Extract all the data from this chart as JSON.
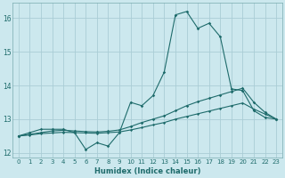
{
  "xlabel": "Humidex (Indice chaleur)",
  "background_color": "#cce8ee",
  "grid_color": "#aacdd6",
  "line_color": "#1e6b6b",
  "x_values": [
    0,
    1,
    2,
    3,
    4,
    5,
    6,
    7,
    8,
    9,
    10,
    11,
    12,
    13,
    14,
    15,
    16,
    17,
    18,
    19,
    20,
    21,
    22,
    23
  ],
  "line1_y": [
    12.5,
    12.6,
    12.7,
    12.7,
    12.7,
    12.6,
    12.1,
    12.3,
    12.2,
    12.6,
    13.5,
    13.4,
    13.7,
    14.4,
    16.1,
    16.2,
    15.7,
    15.85,
    15.45,
    13.9,
    13.85,
    13.25,
    13.05,
    13.0
  ],
  "line2_y": [
    12.5,
    12.55,
    12.6,
    12.65,
    12.67,
    12.65,
    12.63,
    12.62,
    12.64,
    12.68,
    12.78,
    12.9,
    13.0,
    13.1,
    13.25,
    13.4,
    13.52,
    13.62,
    13.72,
    13.82,
    13.92,
    13.5,
    13.2,
    13.0
  ],
  "line3_y": [
    12.5,
    12.53,
    12.57,
    12.59,
    12.61,
    12.6,
    12.59,
    12.58,
    12.6,
    12.62,
    12.68,
    12.75,
    12.83,
    12.9,
    13.0,
    13.08,
    13.16,
    13.24,
    13.32,
    13.4,
    13.48,
    13.3,
    13.15,
    13.0
  ],
  "ylim": [
    11.85,
    16.45
  ],
  "yticks": [
    12,
    13,
    14,
    15,
    16
  ],
  "xticks": [
    0,
    1,
    2,
    3,
    4,
    5,
    6,
    7,
    8,
    9,
    10,
    11,
    12,
    13,
    14,
    15,
    16,
    17,
    18,
    19,
    20,
    21,
    22,
    23
  ]
}
